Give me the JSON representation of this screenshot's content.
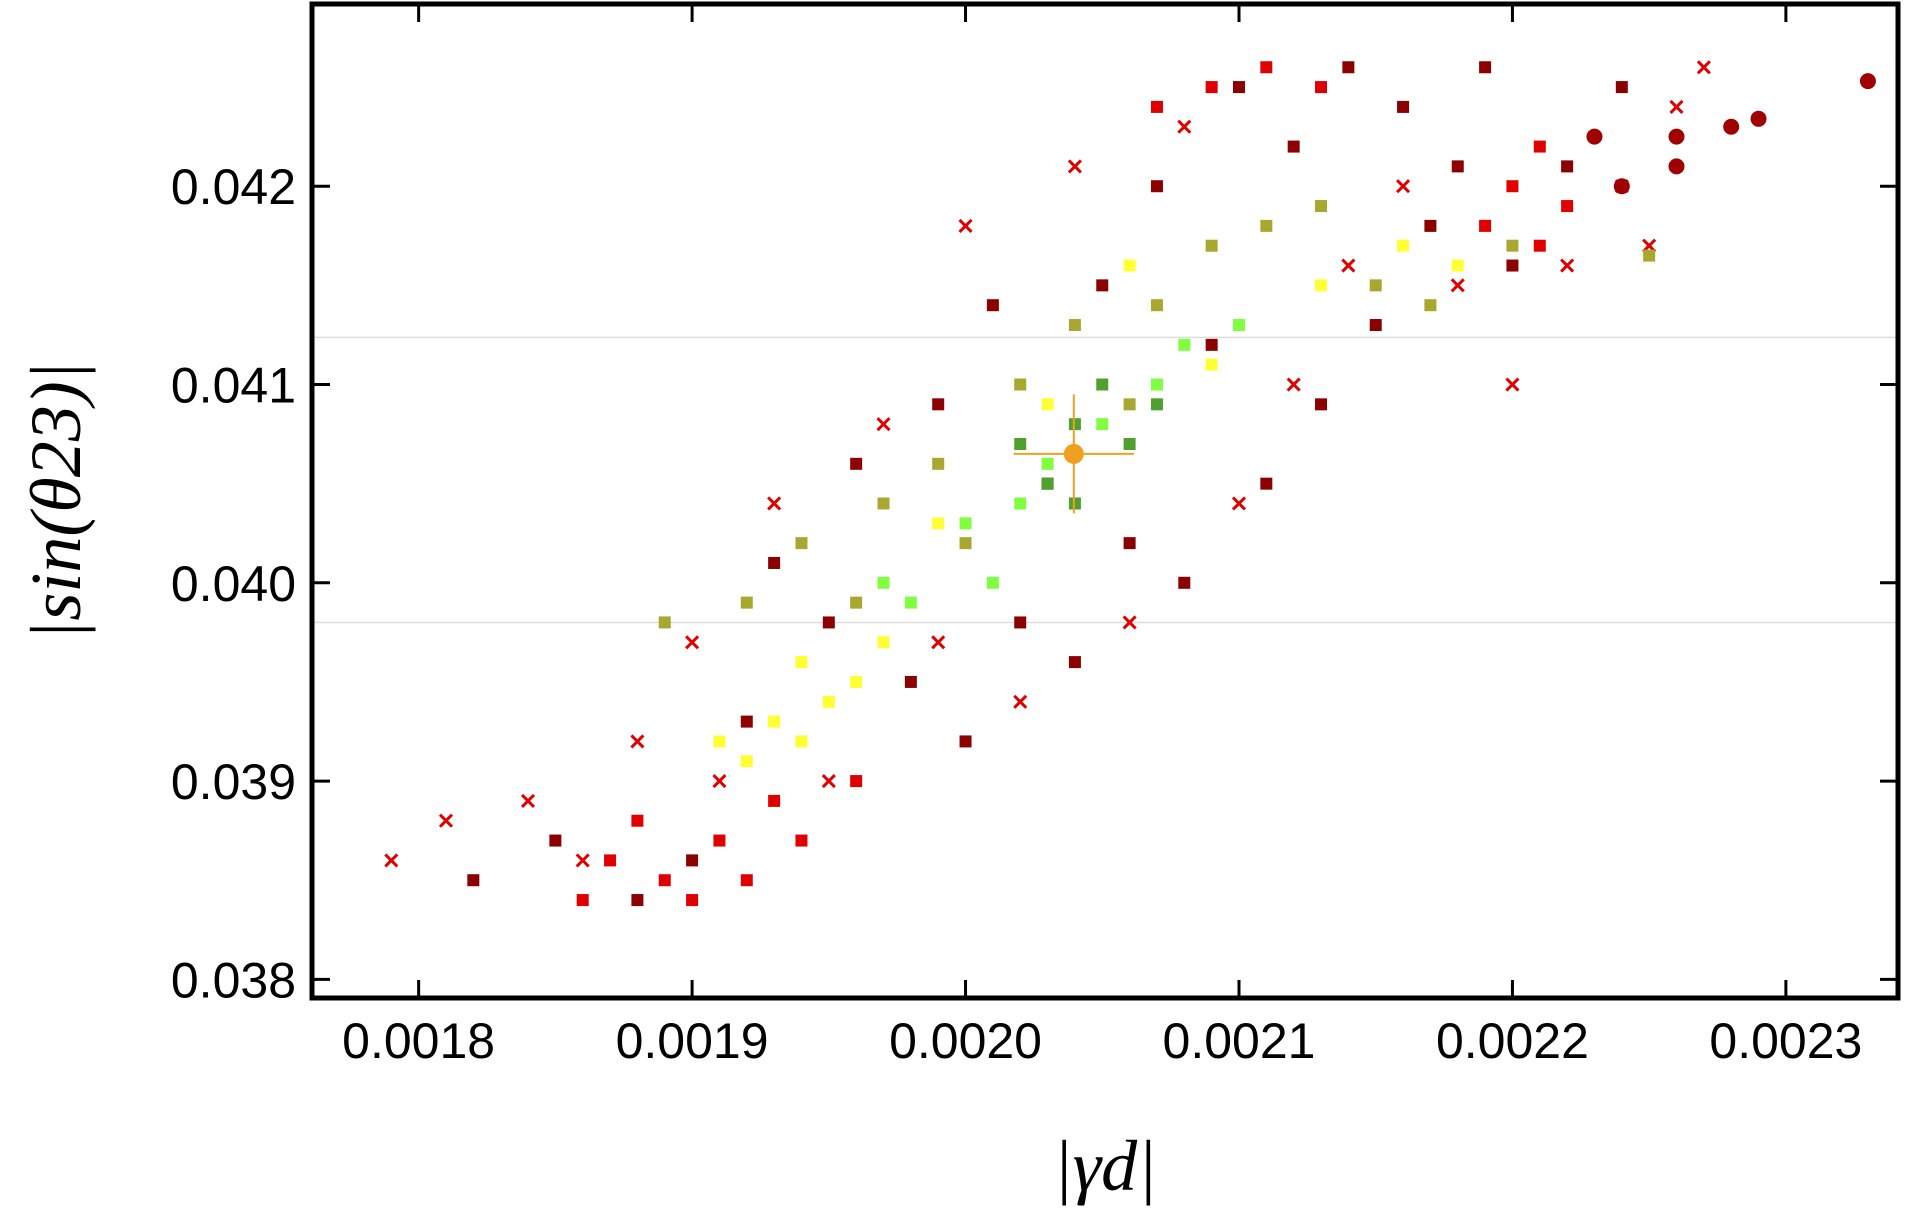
{
  "chart_data": {
    "type": "scatter",
    "x_label": "|γd|",
    "y_label": "|sin(θ23)|",
    "xlim": [
      0.001761,
      0.002341
    ],
    "ylim": [
      0.037906,
      0.042919
    ],
    "xticks": [
      0.0018,
      0.0019,
      {
        "value": 0.002,
        "label": "0.0020"
      },
      0.0021,
      0.0022,
      0.0023
    ],
    "yticks": [
      0.038,
      0.039,
      {
        "value": 0.04,
        "label": "0.040"
      },
      0.041,
      0.042
    ],
    "hlines": [
      0.041238,
      0.0398
    ],
    "hline_color": "#dddddd",
    "series": [
      {
        "color": "#8b0000",
        "marker": "square",
        "x": [
          0.00182,
          0.00185,
          0.00188,
          0.0019,
          0.00192,
          0.00193,
          0.00195,
          0.00196,
          0.00198,
          0.00199,
          0.002,
          0.00201,
          0.00202,
          0.00203,
          0.00204,
          0.00205,
          0.00206,
          0.00207,
          0.00208,
          0.00209,
          0.0021,
          0.00211,
          0.00212,
          0.00213,
          0.00214,
          0.00215,
          0.00216,
          0.00217,
          0.00218,
          0.00219,
          0.0022,
          0.00222,
          0.00224
        ],
        "y": [
          0.0385,
          0.0387,
          0.0384,
          0.0386,
          0.0393,
          0.0401,
          0.0398,
          0.0406,
          0.0395,
          0.0409,
          0.0392,
          0.0414,
          0.0398,
          0.0405,
          0.0396,
          0.0415,
          0.0402,
          0.042,
          0.04,
          0.0412,
          0.0425,
          0.0405,
          0.0422,
          0.0409,
          0.0426,
          0.0413,
          0.0424,
          0.0418,
          0.0421,
          0.0426,
          0.0416,
          0.0421,
          0.0425
        ]
      },
      {
        "color": "#e00000",
        "marker": "cross",
        "x": [
          0.00179,
          0.00181,
          0.00184,
          0.00186,
          0.00188,
          0.0019,
          0.00191,
          0.00193,
          0.00195,
          0.00197,
          0.00199,
          0.002,
          0.00202,
          0.00204,
          0.00206,
          0.00208,
          0.0021,
          0.00212,
          0.00214,
          0.00216,
          0.00218,
          0.0022,
          0.00222,
          0.00224,
          0.00226,
          0.00227,
          0.00225
        ],
        "y": [
          0.0386,
          0.0388,
          0.0389,
          0.0386,
          0.0392,
          0.0397,
          0.039,
          0.0404,
          0.039,
          0.0408,
          0.0397,
          0.0418,
          0.0394,
          0.0421,
          0.0398,
          0.0423,
          0.0404,
          0.041,
          0.0416,
          0.042,
          0.0415,
          0.041,
          0.0416,
          0.042,
          0.0424,
          0.0426,
          0.0417
        ]
      },
      {
        "color": "#e00000",
        "marker": "square",
        "x": [
          0.00186,
          0.00187,
          0.00188,
          0.00189,
          0.0019,
          0.00191,
          0.00192,
          0.00193,
          0.00194,
          0.00196,
          0.00219,
          0.0022,
          0.00221,
          0.00222,
          0.00221,
          0.00207,
          0.00209,
          0.00211,
          0.00213
        ],
        "y": [
          0.0384,
          0.0386,
          0.0388,
          0.0385,
          0.0384,
          0.0387,
          0.0385,
          0.0389,
          0.0387,
          0.039,
          0.0418,
          0.042,
          0.0417,
          0.0419,
          0.0422,
          0.0424,
          0.0425,
          0.0426,
          0.0425
        ]
      },
      {
        "color": "#a00000",
        "marker": "circle",
        "x": [
          0.00223,
          0.00226,
          0.00228,
          0.00229,
          0.00233,
          0.00226,
          0.00224
        ],
        "y": [
          0.04225,
          0.04225,
          0.0423,
          0.04234,
          0.04253,
          0.0421,
          0.042
        ]
      },
      {
        "color": "#ffff33",
        "marker": "square",
        "x": [
          0.00191,
          0.00192,
          0.00193,
          0.00194,
          0.00195,
          0.00196,
          0.00194,
          0.00197,
          0.00199,
          0.00203,
          0.00206,
          0.00209,
          0.00213,
          0.00216,
          0.00218
        ],
        "y": [
          0.0392,
          0.0391,
          0.0393,
          0.0392,
          0.0394,
          0.0395,
          0.0396,
          0.0397,
          0.0403,
          0.0409,
          0.0416,
          0.0411,
          0.0415,
          0.0417,
          0.0416
        ]
      },
      {
        "color": "#a8a830",
        "marker": "square",
        "x": [
          0.00189,
          0.00192,
          0.00194,
          0.00196,
          0.00197,
          0.00199,
          0.002,
          0.00202,
          0.00204,
          0.00206,
          0.00207,
          0.00209,
          0.00211,
          0.00213,
          0.00215,
          0.00217,
          0.0022,
          0.00225
        ],
        "y": [
          0.0398,
          0.0399,
          0.0402,
          0.0399,
          0.0404,
          0.0406,
          0.0402,
          0.041,
          0.0413,
          0.0409,
          0.0414,
          0.0417,
          0.0418,
          0.0419,
          0.0415,
          0.0414,
          0.0417,
          0.04165
        ]
      },
      {
        "color": "#80ff40",
        "marker": "square",
        "x": [
          0.00197,
          0.00198,
          0.002,
          0.00201,
          0.00202,
          0.00203,
          0.00205,
          0.00207,
          0.00208,
          0.0021
        ],
        "y": [
          0.04,
          0.0399,
          0.0403,
          0.04,
          0.0404,
          0.0406,
          0.0408,
          0.041,
          0.0412,
          0.0413
        ]
      },
      {
        "color": "#50a030",
        "marker": "square",
        "x": [
          0.00202,
          0.00203,
          0.00204,
          0.00205,
          0.00206,
          0.00207,
          0.00204
        ],
        "y": [
          0.0407,
          0.0405,
          0.0408,
          0.041,
          0.0407,
          0.0409,
          0.0404
        ]
      }
    ],
    "reference_point": {
      "x": 0.0020396,
      "y": 0.04065,
      "xerr": 2.2e-05,
      "yerr": 0.0003,
      "color": "#f0a020"
    }
  }
}
